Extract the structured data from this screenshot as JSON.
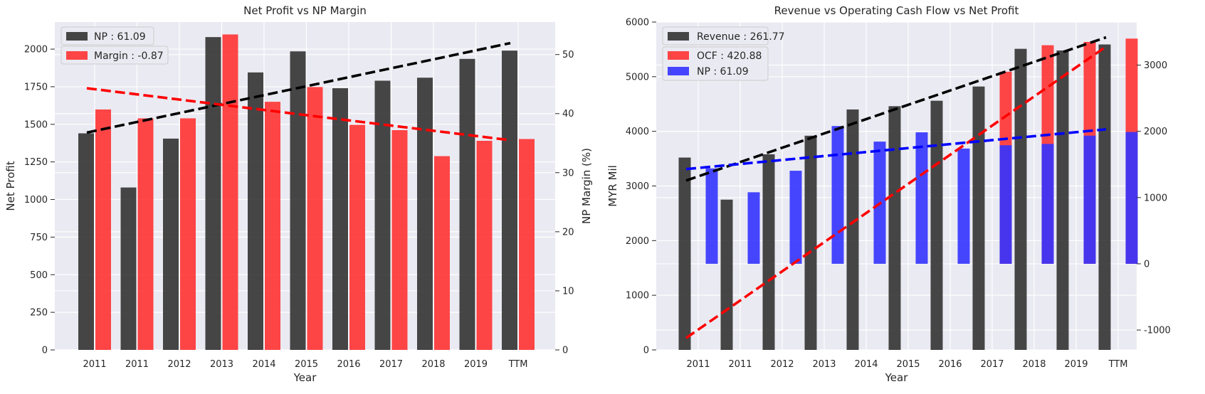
{
  "chart_data": [
    {
      "type": "bar",
      "title": "Net Profit vs NP Margin",
      "xlabel": "Year",
      "ylabel": "Net Profit",
      "y2label": "NP Margin (%)",
      "categories": [
        "2011",
        "2011",
        "2012",
        "2013",
        "2014",
        "2015",
        "2016",
        "2017",
        "2018",
        "2019",
        "TTM"
      ],
      "ylim": [
        0,
        2180
      ],
      "y2lim": [
        0,
        55.5
      ],
      "yticks": [
        0,
        250,
        500,
        750,
        1000,
        1250,
        1500,
        1750,
        2000
      ],
      "y2ticks": [
        0,
        10,
        20,
        30,
        40,
        50
      ],
      "series": [
        {
          "name": "NP : 61.09",
          "axis": "left",
          "color": "#333333",
          "values": [
            1440,
            1080,
            1405,
            2080,
            1845,
            1985,
            1740,
            1790,
            1810,
            1935,
            1990
          ]
        },
        {
          "name": "Margin : -0.87",
          "axis": "right",
          "color": "#ff3333",
          "values": [
            40.7,
            39.2,
            39.2,
            53.4,
            42.0,
            44.5,
            38.1,
            37.2,
            32.8,
            35.4,
            35.7
          ]
        }
      ],
      "trendlines": [
        {
          "axis": "left",
          "color": "#000000",
          "x": [
            0,
            10
          ],
          "y": [
            1445,
            2040
          ]
        },
        {
          "axis": "right",
          "color": "#ff0000",
          "x": [
            0,
            10
          ],
          "y": [
            44.3,
            35.5
          ]
        }
      ],
      "legend": "top-left",
      "grid": true
    },
    {
      "type": "bar",
      "title": "Revenue vs Operating Cash Flow vs Net Profit",
      "xlabel": "Year",
      "ylabel": "MYR Mil",
      "categories": [
        "2011",
        "2011",
        "2012",
        "2013",
        "2014",
        "2015",
        "2016",
        "2017",
        "2018",
        "2019",
        "TTM"
      ],
      "ylim": [
        0,
        6000
      ],
      "y2lim": [
        -1300,
        3650
      ],
      "yticks": [
        0,
        1000,
        2000,
        3000,
        4000,
        5000,
        6000
      ],
      "y2ticks": [
        -1000,
        0,
        1000,
        2000,
        3000
      ],
      "series": [
        {
          "name": "Revenue : 261.77",
          "axis": "left",
          "color": "#333333",
          "values": [
            3520,
            2750,
            3580,
            3920,
            4400,
            4460,
            4560,
            4820,
            5510,
            5480,
            5590
          ]
        },
        {
          "name": "OCF : 420.88",
          "axis": "right",
          "color": "#ff3333",
          "values": [
            null,
            null,
            null,
            null,
            null,
            null,
            null,
            2900,
            3300,
            3350,
            3400
          ]
        },
        {
          "name": "NP : 61.09",
          "axis": "right",
          "color": "#3333ff",
          "values": [
            1440,
            1080,
            1405,
            2080,
            1845,
            1985,
            1740,
            1790,
            1810,
            1935,
            1990
          ]
        }
      ],
      "trendlines": [
        {
          "axis": "left",
          "color": "#000000",
          "x": [
            0,
            10
          ],
          "y": [
            3100,
            5720
          ]
        },
        {
          "axis": "right",
          "color": "#ff0000",
          "x": [
            0,
            10
          ],
          "y": [
            -1120,
            3280
          ]
        },
        {
          "axis": "right",
          "color": "#0000ff",
          "x": [
            0,
            10
          ],
          "y": [
            1430,
            2030
          ]
        }
      ],
      "legend": "top-left",
      "grid": true
    }
  ]
}
